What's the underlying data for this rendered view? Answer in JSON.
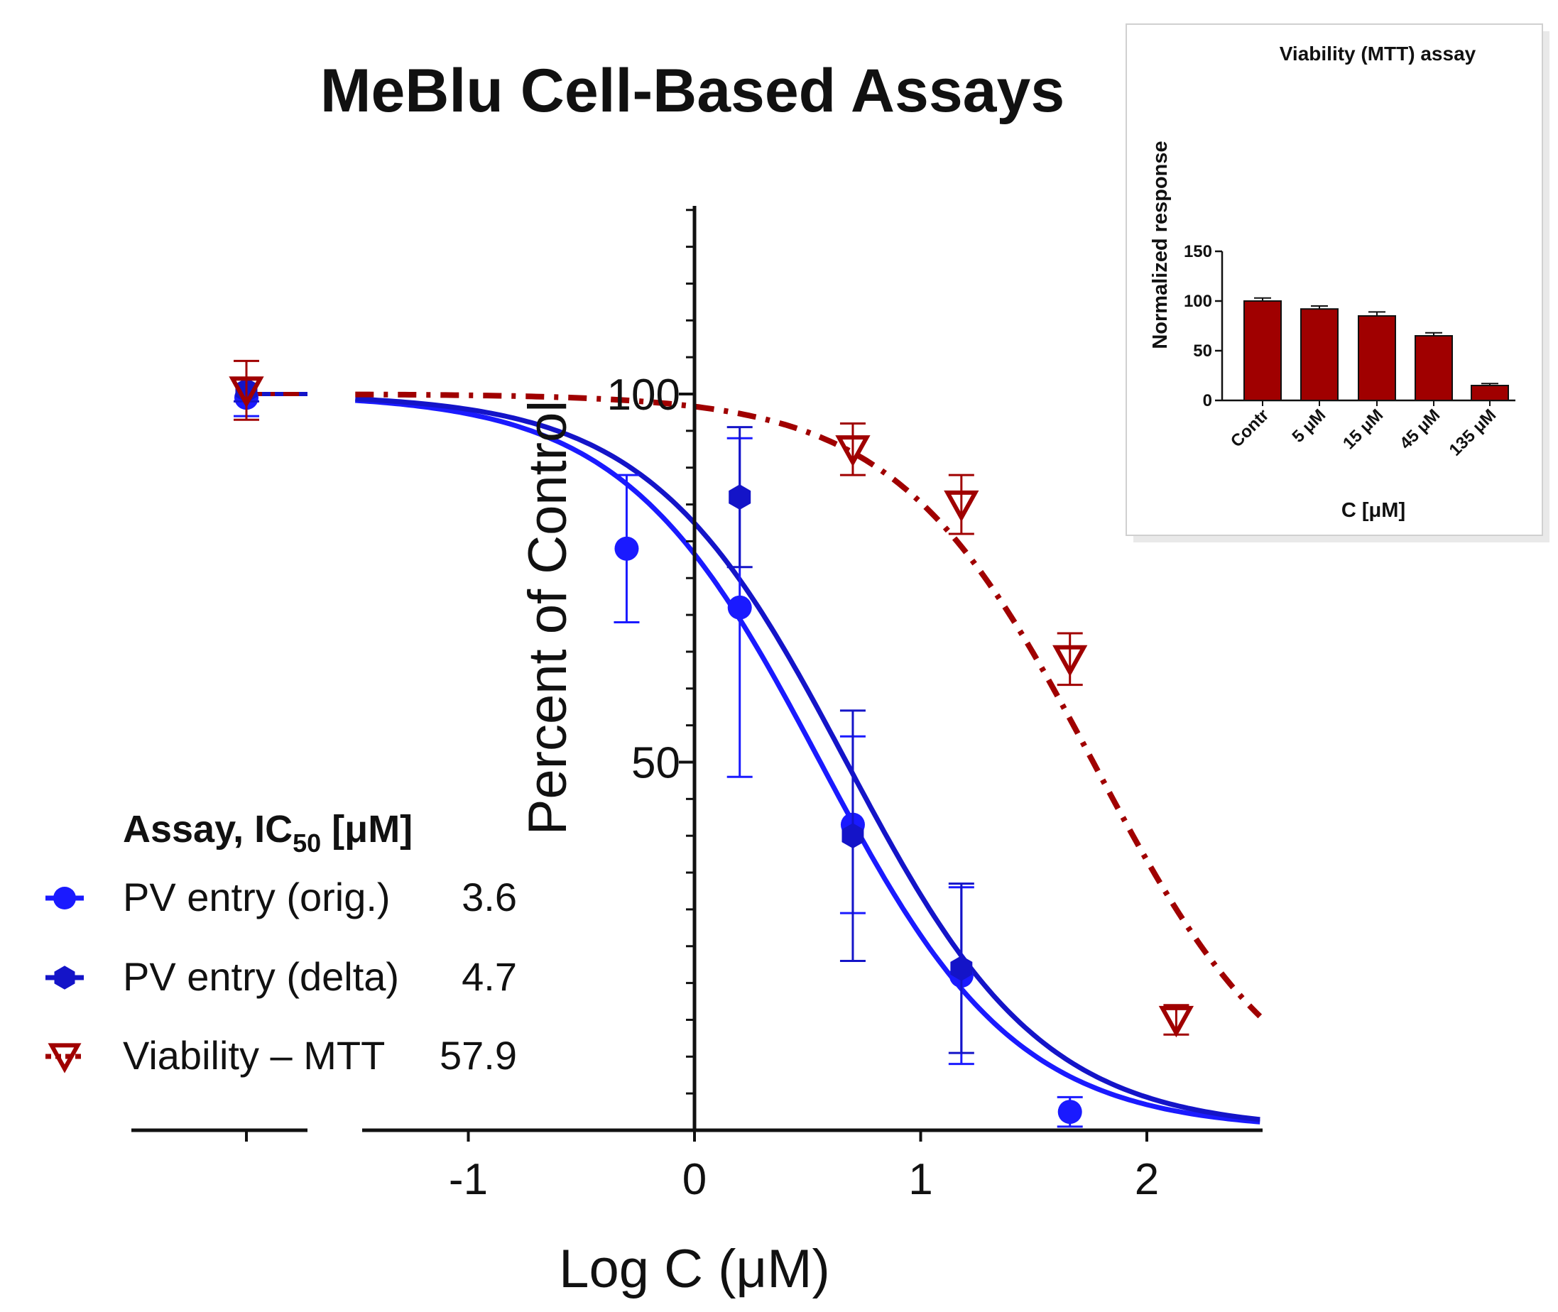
{
  "chart_data": [
    {
      "type": "scatter",
      "title": "MeBlu Cell-Based Assays",
      "xlabel": "Log C (μM)",
      "ylabel": "Percent of Control",
      "xlim": [
        -1.5,
        2.5
      ],
      "ylim": [
        0,
        125
      ],
      "x_ticks": [
        -1,
        0,
        1,
        2
      ],
      "x_tick_labels": [
        "-1",
        "0",
        "1",
        "2"
      ],
      "y_ticks": [
        50,
        100
      ],
      "y_tick_labels": [
        "50",
        "100"
      ],
      "control_x": -2.0,
      "legend": {
        "title": "Assay, IC",
        "title_sub": "50",
        "title_unit": " [μM]",
        "position": "left"
      },
      "series": [
        {
          "name": "PV entry (orig.)",
          "ic50_label": "3.6",
          "ic50": 3.6,
          "color": "#1a1aff",
          "marker": "circle",
          "fit_line": "solid",
          "control": {
            "y": 99.5,
            "err": 2.5
          },
          "points": [
            {
              "x": -0.3,
              "y": 79.0,
              "err": 10.0
            },
            {
              "x": 0.2,
              "y": 71.0,
              "err": 23.0
            },
            {
              "x": 0.7,
              "y": 41.5,
              "err": 12.0
            },
            {
              "x": 1.18,
              "y": 21.0,
              "err": 12.0
            },
            {
              "x": 1.66,
              "y": 2.5,
              "err": 2.0
            }
          ]
        },
        {
          "name": "PV entry (delta)",
          "ic50_label": "4.7",
          "ic50": 4.7,
          "color": "#1414c8",
          "marker": "hexagon",
          "fit_line": "solid",
          "control": {
            "y": 100.5,
            "err": 1.5
          },
          "points": [
            {
              "x": 0.2,
              "y": 86.0,
              "err": 9.5
            },
            {
              "x": 0.7,
              "y": 40.0,
              "err": 17.0
            },
            {
              "x": 1.18,
              "y": 22.0,
              "err": 11.5
            }
          ]
        },
        {
          "name": "Viability – MTT",
          "ic50_label": "57.9",
          "ic50": 57.9,
          "color": "#a00000",
          "marker": "triangle-down-open",
          "fit_line": "dash-dot",
          "control": {
            "y": 100.5,
            "err": 4.0
          },
          "points": [
            {
              "x": 0.7,
              "y": 92.5,
              "err": 3.5
            },
            {
              "x": 1.18,
              "y": 85.0,
              "err": 4.0
            },
            {
              "x": 1.66,
              "y": 64.0,
              "err": 3.5
            },
            {
              "x": 2.13,
              "y": 15.0,
              "err": 2.0
            }
          ]
        }
      ]
    },
    {
      "type": "bar",
      "title": "Viability (MTT) assay",
      "xlabel": "C [μM]",
      "ylabel": "Normalized response",
      "categories": [
        "Contr",
        "5 μM",
        "15 μM",
        "45 μM",
        "135 μM"
      ],
      "values": [
        100,
        92,
        85,
        65,
        15
      ],
      "errors": [
        3,
        3,
        4,
        3,
        2
      ],
      "ylim": [
        0,
        150
      ],
      "y_ticks": [
        0,
        50,
        100,
        150
      ],
      "y_tick_labels": [
        "0",
        "50",
        "100",
        "150"
      ],
      "bar_color": "#a00000",
      "position": "top-right inset"
    }
  ]
}
